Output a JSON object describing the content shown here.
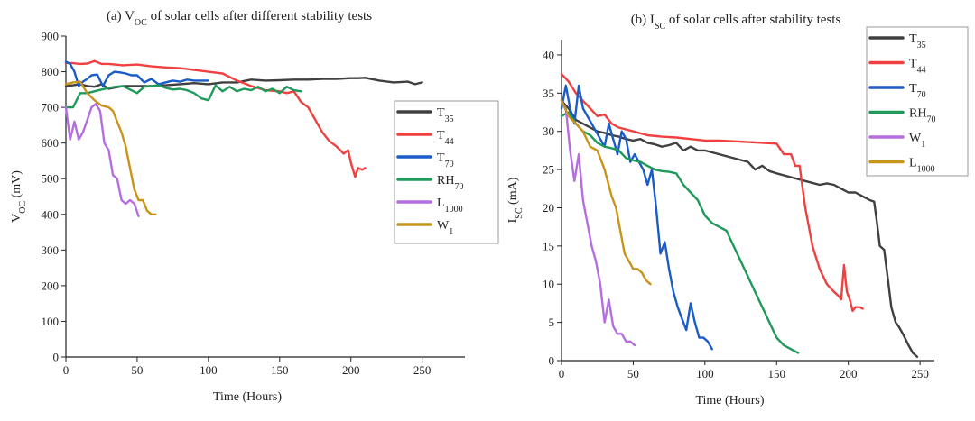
{
  "chart_data": [
    {
      "type": "line",
      "title_prefix": "(a) V",
      "title_sub": "OC",
      "title_suffix": " of solar cells after different stability tests",
      "xlabel": "Time (Hours)",
      "ylabel_main": "V",
      "ylabel_sub": "OC",
      "ylabel_suffix": " (mV)",
      "xlim": [
        0,
        280
      ],
      "ylim": [
        0,
        900
      ],
      "xticks": [
        0,
        50,
        100,
        150,
        200,
        250
      ],
      "yticks": [
        0,
        100,
        200,
        300,
        400,
        500,
        600,
        700,
        800,
        900
      ],
      "legend_position": "right",
      "series": [
        {
          "name": "T",
          "sub": "35",
          "color": "#404040",
          "x": [
            0,
            5,
            10,
            15,
            20,
            25,
            30,
            40,
            50,
            60,
            70,
            80,
            90,
            100,
            110,
            120,
            130,
            140,
            150,
            160,
            170,
            180,
            190,
            200,
            205,
            210,
            220,
            230,
            240,
            245,
            250
          ],
          "y": [
            760,
            762,
            765,
            760,
            758,
            765,
            752,
            760,
            760,
            760,
            762,
            765,
            768,
            765,
            770,
            770,
            778,
            775,
            776,
            778,
            778,
            780,
            780,
            782,
            782,
            783,
            775,
            770,
            772,
            765,
            770
          ]
        },
        {
          "name": "T",
          "sub": "44",
          "color": "#f04040",
          "x": [
            0,
            5,
            10,
            15,
            20,
            25,
            30,
            40,
            50,
            60,
            70,
            80,
            90,
            100,
            110,
            120,
            130,
            140,
            150,
            155,
            160,
            165,
            170,
            175,
            180,
            185,
            190,
            195,
            198,
            200,
            203,
            205,
            208,
            210
          ],
          "y": [
            825,
            824,
            822,
            823,
            830,
            822,
            822,
            818,
            820,
            815,
            812,
            810,
            805,
            800,
            795,
            775,
            760,
            748,
            745,
            740,
            745,
            715,
            700,
            665,
            630,
            605,
            590,
            570,
            580,
            545,
            505,
            530,
            525,
            530
          ]
        },
        {
          "name": "T",
          "sub": "70",
          "color": "#1a5cc8",
          "x": [
            0,
            3,
            6,
            9,
            12,
            15,
            18,
            22,
            26,
            30,
            34,
            38,
            42,
            46,
            50,
            55,
            60,
            65,
            70,
            75,
            80,
            85,
            90,
            95,
            100
          ],
          "y": [
            828,
            822,
            800,
            760,
            772,
            780,
            790,
            792,
            760,
            790,
            800,
            798,
            795,
            790,
            790,
            770,
            780,
            765,
            770,
            775,
            772,
            778,
            775,
            775,
            775
          ]
        },
        {
          "name": "RH",
          "sub": "70",
          "color": "#1f9a5a",
          "x": [
            0,
            5,
            10,
            15,
            20,
            25,
            30,
            35,
            40,
            45,
            50,
            55,
            60,
            65,
            70,
            75,
            80,
            85,
            90,
            95,
            100,
            105,
            110,
            115,
            120,
            125,
            130,
            135,
            140,
            145,
            150,
            155,
            160,
            165
          ],
          "y": [
            700,
            700,
            740,
            740,
            745,
            750,
            755,
            758,
            760,
            750,
            740,
            758,
            760,
            762,
            755,
            750,
            752,
            748,
            740,
            725,
            720,
            762,
            745,
            758,
            745,
            752,
            748,
            758,
            745,
            752,
            740,
            758,
            748,
            745
          ]
        },
        {
          "name": "L",
          "sub": "1000",
          "color": "#b46ee0",
          "x": [
            0,
            3,
            6,
            9,
            12,
            15,
            18,
            21,
            24,
            27,
            30,
            33,
            36,
            39,
            42,
            45,
            48,
            51
          ],
          "y": [
            700,
            610,
            660,
            610,
            630,
            665,
            700,
            710,
            690,
            600,
            580,
            510,
            500,
            440,
            430,
            440,
            430,
            395
          ]
        },
        {
          "name": "W",
          "sub": "1",
          "color": "#c8941a",
          "x": [
            0,
            5,
            10,
            15,
            20,
            25,
            30,
            33,
            36,
            39,
            42,
            45,
            48,
            51,
            54,
            57,
            60,
            63
          ],
          "y": [
            765,
            770,
            772,
            740,
            720,
            705,
            700,
            690,
            660,
            630,
            590,
            530,
            470,
            440,
            440,
            410,
            400,
            400
          ]
        }
      ],
      "legend_order": [
        {
          "name": "T",
          "sub": "35",
          "color": "#404040"
        },
        {
          "name": "T",
          "sub": "44",
          "color": "#f04040"
        },
        {
          "name": "T",
          "sub": "70",
          "color": "#1a5cc8"
        },
        {
          "name": "RH",
          "sub": "70",
          "color": "#1f9a5a"
        },
        {
          "name": "L",
          "sub": "1000",
          "color": "#b46ee0"
        },
        {
          "name": "W",
          "sub": "1",
          "color": "#c8941a"
        }
      ]
    },
    {
      "type": "line",
      "title_prefix": "(b) I",
      "title_sub": "SC",
      "title_suffix": " of solar cells after stability tests",
      "xlabel": "Time (Hours)",
      "ylabel_main": "I",
      "ylabel_sub": "SC",
      "ylabel_suffix": " (mA)",
      "xlim": [
        0,
        260
      ],
      "ylim": [
        0,
        42
      ],
      "xticks": [
        0,
        50,
        100,
        150,
        200,
        250
      ],
      "yticks": [
        0,
        5,
        10,
        15,
        20,
        25,
        30,
        35,
        40
      ],
      "legend_position": "top-right",
      "series": [
        {
          "name": "T",
          "sub": "35",
          "color": "#404040",
          "x": [
            0,
            5,
            10,
            15,
            20,
            25,
            30,
            35,
            40,
            45,
            50,
            55,
            60,
            65,
            70,
            75,
            80,
            85,
            90,
            95,
            100,
            110,
            120,
            130,
            135,
            140,
            145,
            150,
            160,
            170,
            180,
            185,
            190,
            195,
            200,
            205,
            210,
            215,
            218,
            220,
            222,
            225,
            228,
            230,
            233,
            235,
            238,
            242,
            245,
            248
          ],
          "y": [
            34,
            33,
            31.5,
            31,
            30.5,
            30,
            29.8,
            29.5,
            29.3,
            29,
            28.8,
            29,
            28.5,
            28.3,
            28,
            28.2,
            28.5,
            27.5,
            28,
            27.5,
            27.5,
            27,
            26.5,
            26,
            25,
            25.5,
            24.8,
            24.5,
            24,
            23.5,
            23,
            23.2,
            23,
            22.5,
            22,
            22,
            21.5,
            21,
            20.8,
            18,
            15,
            14.5,
            10,
            7,
            5,
            4.5,
            3.5,
            2,
            1,
            0.5
          ]
        },
        {
          "name": "T",
          "sub": "44",
          "color": "#f04040",
          "x": [
            0,
            5,
            10,
            15,
            20,
            25,
            30,
            35,
            40,
            50,
            60,
            70,
            80,
            90,
            100,
            110,
            120,
            130,
            140,
            150,
            155,
            160,
            163,
            166,
            170,
            175,
            180,
            185,
            190,
            193,
            195,
            197,
            199,
            201,
            203,
            205,
            208,
            210
          ],
          "y": [
            37.5,
            36.5,
            35,
            34,
            33,
            32,
            32.2,
            31,
            30.5,
            30,
            29.5,
            29.3,
            29.2,
            29,
            28.8,
            28.8,
            28.7,
            28.6,
            28.5,
            28.4,
            27,
            27,
            25.5,
            25.5,
            20,
            15,
            12,
            10,
            9,
            8.5,
            8,
            12.5,
            9,
            8,
            6.5,
            7,
            7,
            6.8
          ]
        },
        {
          "name": "T",
          "sub": "70",
          "color": "#1a5cc8",
          "x": [
            0,
            3,
            6,
            9,
            12,
            15,
            18,
            21,
            24,
            27,
            30,
            33,
            36,
            39,
            42,
            45,
            48,
            51,
            54,
            57,
            60,
            63,
            66,
            69,
            72,
            75,
            78,
            81,
            84,
            87,
            90,
            93,
            96,
            99,
            102,
            105
          ],
          "y": [
            33,
            36,
            33,
            31,
            36,
            33,
            32,
            31,
            30,
            29,
            28,
            31,
            29,
            27,
            30,
            29,
            26,
            27,
            26,
            25,
            23,
            25,
            20,
            14,
            15.5,
            12,
            9,
            7,
            5.5,
            4,
            7.5,
            5,
            3,
            3,
            2.5,
            1.5
          ]
        },
        {
          "name": "RH",
          "sub": "70",
          "color": "#1f9a5a",
          "x": [
            0,
            5,
            10,
            15,
            20,
            25,
            30,
            35,
            40,
            45,
            50,
            55,
            60,
            65,
            70,
            75,
            80,
            85,
            90,
            95,
            100,
            105,
            110,
            115,
            120,
            125,
            130,
            135,
            140,
            145,
            150,
            155,
            160,
            165
          ],
          "y": [
            32,
            32.5,
            31,
            30,
            29.5,
            28.5,
            28,
            27.8,
            27.5,
            26.5,
            26.2,
            26,
            25.5,
            25,
            24.8,
            24.7,
            24.5,
            23,
            22,
            21,
            19,
            18,
            17.5,
            17,
            15,
            13,
            11,
            9,
            7,
            5,
            3,
            2,
            1.5,
            1
          ]
        },
        {
          "name": "W",
          "sub": "1",
          "color": "#b46ee0",
          "x": [
            0,
            3,
            6,
            9,
            12,
            15,
            18,
            21,
            24,
            27,
            30,
            33,
            36,
            39,
            42,
            45,
            48,
            51
          ],
          "y": [
            34,
            33,
            27.5,
            23.5,
            27,
            21,
            18,
            15,
            13,
            10,
            5,
            8,
            4.5,
            3.5,
            3.5,
            2.5,
            2.5,
            2
          ]
        },
        {
          "name": "L",
          "sub": "1000",
          "color": "#c8941a",
          "x": [
            0,
            5,
            10,
            15,
            20,
            25,
            30,
            35,
            38,
            41,
            44,
            47,
            50,
            53,
            56,
            59,
            62
          ],
          "y": [
            34,
            32,
            31,
            30,
            28,
            27.5,
            25,
            21.5,
            20,
            17,
            14,
            13,
            12,
            12,
            11.5,
            10.5,
            10
          ]
        }
      ],
      "legend_order": [
        {
          "name": "T",
          "sub": "35",
          "color": "#404040"
        },
        {
          "name": "T",
          "sub": "44",
          "color": "#f04040"
        },
        {
          "name": "T",
          "sub": "70",
          "color": "#1a5cc8"
        },
        {
          "name": "RH",
          "sub": "70",
          "color": "#1f9a5a"
        },
        {
          "name": "W",
          "sub": "1",
          "color": "#b46ee0"
        },
        {
          "name": "L",
          "sub": "1000",
          "color": "#c8941a"
        }
      ]
    }
  ]
}
